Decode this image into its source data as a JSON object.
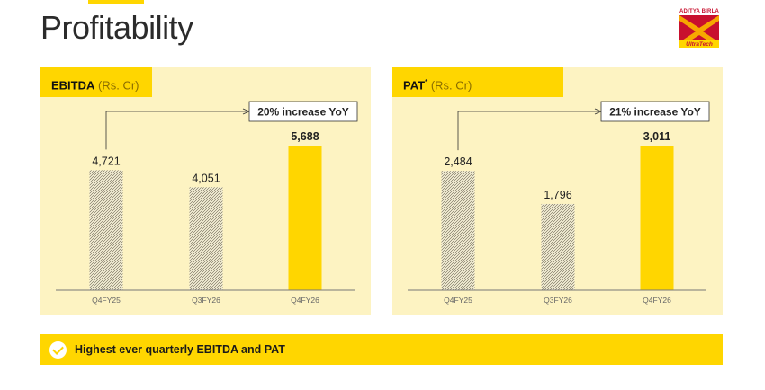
{
  "page": {
    "title": "Profitability",
    "logo": {
      "brand": "ADITYA BIRLA",
      "name": "UltraTech"
    }
  },
  "colors": {
    "accent": "#ffd600",
    "panel_bg": "#fdf3c2",
    "hatch_bg": "#fbf6dc",
    "hatch_line": "#7a7460",
    "axis": "#777777"
  },
  "footer": {
    "text": "Highest ever quarterly EBITDA and PAT",
    "icon": "check-circle-icon"
  },
  "chart_data": [
    {
      "type": "bar",
      "title": "EBITDA",
      "title_suffix": "",
      "unit": "(Rs. Cr)",
      "categories": [
        "Q4FY25",
        "Q3FY26",
        "Q4FY26"
      ],
      "values": [
        4721,
        4051,
        5688
      ],
      "value_labels": [
        "4,721",
        "4,051",
        "5,688"
      ],
      "highlight": [
        false,
        false,
        true
      ],
      "ylim": [
        0,
        5688
      ],
      "annotation": {
        "text": "20% increase YoY",
        "from": "Q4FY25",
        "to": "Q4FY26"
      }
    },
    {
      "type": "bar",
      "title": "PAT",
      "title_suffix": "*",
      "unit": "(Rs. Cr)",
      "categories": [
        "Q4FY25",
        "Q3FY26",
        "Q4FY26"
      ],
      "values": [
        2484,
        1796,
        3011
      ],
      "value_labels": [
        "2,484",
        "1,796",
        "3,011"
      ],
      "highlight": [
        false,
        false,
        true
      ],
      "ylim": [
        0,
        3011
      ],
      "annotation": {
        "text": "21% increase YoY",
        "from": "Q4FY25",
        "to": "Q4FY26"
      }
    }
  ]
}
